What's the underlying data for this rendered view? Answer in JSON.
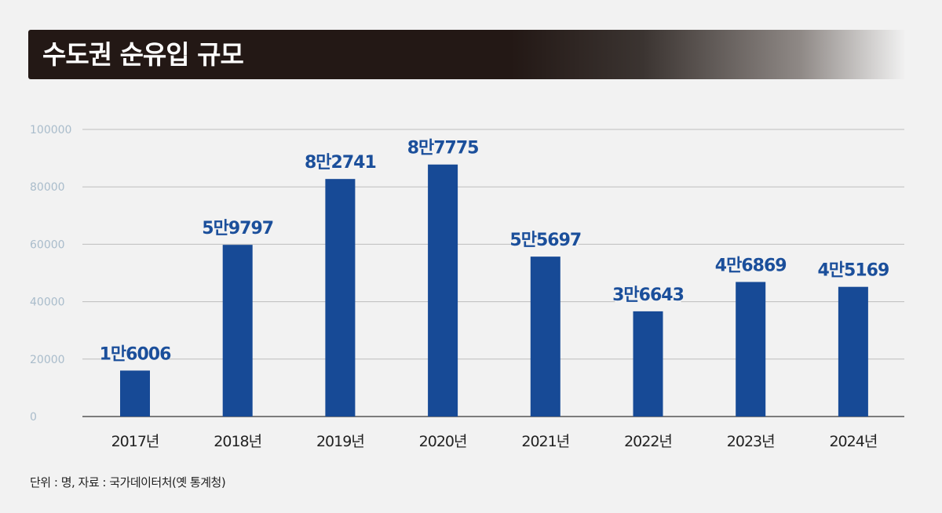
{
  "chart_data": {
    "type": "bar",
    "title": "수도권 순유입 규모",
    "categories": [
      "2017년",
      "2018년",
      "2019년",
      "2020년",
      "2021년",
      "2022년",
      "2023년",
      "2024년"
    ],
    "values": [
      16006,
      59797,
      82741,
      87775,
      55697,
      36643,
      46869,
      45169
    ],
    "data_labels": [
      "1만6006",
      "5만9797",
      "8만2741",
      "8만7775",
      "5만5697",
      "3만6643",
      "4만6869",
      "4만5169"
    ],
    "y_ticks": [
      "0",
      "20000",
      "40000",
      "60000",
      "80000",
      "100000"
    ],
    "ylim": [
      0,
      100000
    ],
    "grid": true,
    "bar_color": "#174a96",
    "label_color": "#1b4f9b"
  },
  "footnote": "단위 : 명, 자료 : 국가데이터처(옛 통계청)"
}
